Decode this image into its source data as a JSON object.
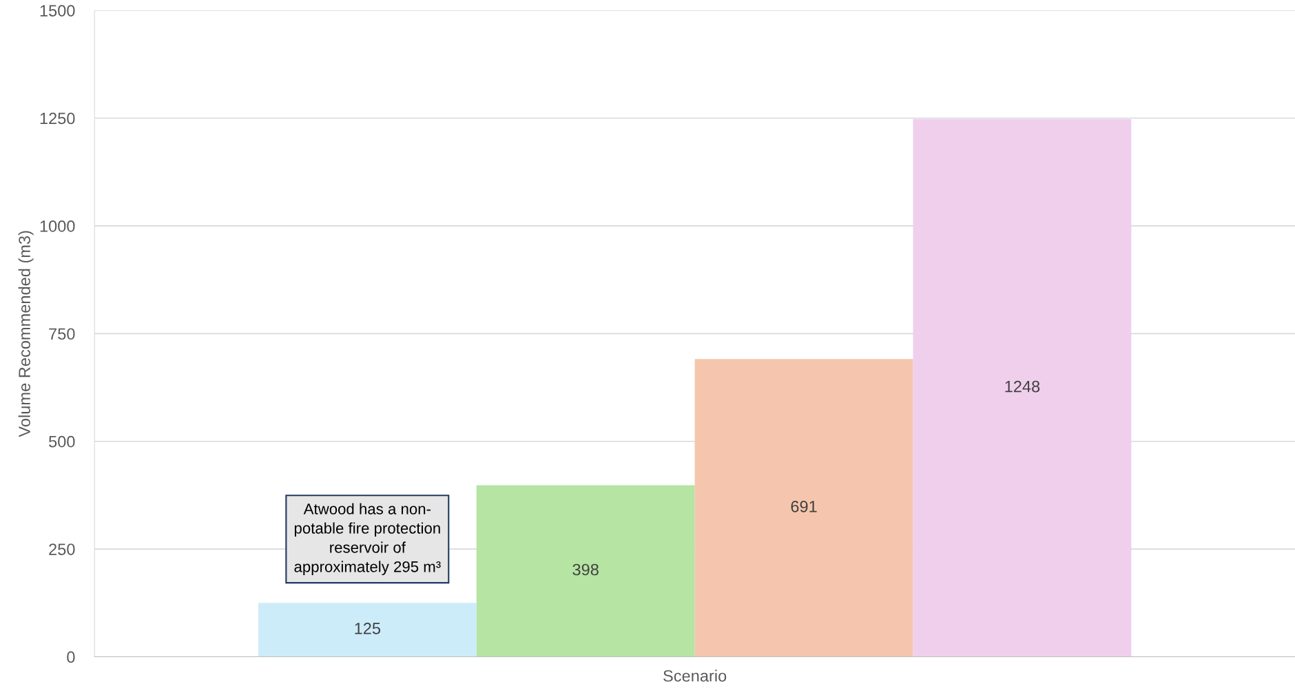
{
  "chart_data": {
    "type": "bar",
    "xlabel": "Scenario",
    "ylabel": "Volume Recommended (m3)",
    "categories": [
      null,
      null,
      null,
      null
    ],
    "values": [
      125,
      398,
      691,
      1248
    ],
    "colors": [
      "#cdecfa",
      "#b5e4a3",
      "#f5c6ad",
      "#f0cfed"
    ],
    "ylim": [
      0,
      1500
    ],
    "yticks": [
      0,
      250,
      500,
      750,
      1000,
      1250,
      1500
    ],
    "grid": "y",
    "data_labels": true,
    "annotations": [
      "Atwood has a non-\npotable fire protection\nreservoir of\napproximately 295 m³"
    ]
  }
}
